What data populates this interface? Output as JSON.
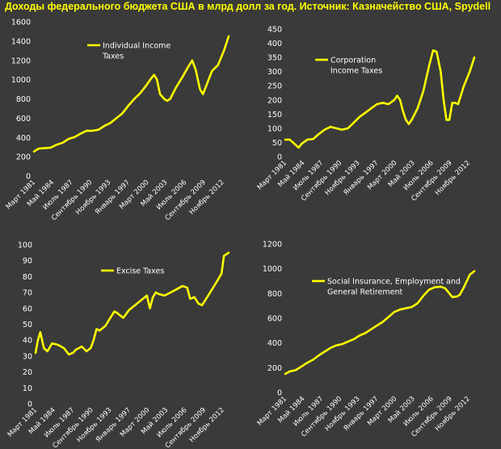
{
  "page": {
    "title": "Доходы федерального бюджета США в млрд долл за год. Источник: Казначейство США, Spydell"
  },
  "style": {
    "background": "#3a3a3a",
    "line_color": "#ffff00",
    "text_color": "#ffffff",
    "title_color": "#ffff00"
  },
  "chart_data": [
    {
      "type": "line",
      "x_tick_labels": [
        "Март 1981",
        "Май 1984",
        "Июль 1987",
        "Сентябрь 1990",
        "Ноябрь 1993",
        "Январь 1997",
        "Март 2000",
        "Май 2003",
        "Июль 2006",
        "Сентябрь 2009",
        "Ноябрь 2012"
      ],
      "ylim": [
        0,
        1600
      ],
      "yticks": [
        0,
        200,
        400,
        600,
        800,
        1000,
        1200,
        1400,
        1600
      ],
      "grid": false,
      "legend": "top-left",
      "series": [
        {
          "name": "Individual Income Taxes",
          "x": [
            1981.2,
            1982,
            1983,
            1984,
            1985,
            1986,
            1987,
            1988,
            1989,
            1990,
            1991,
            1992,
            1993,
            1994,
            1995,
            1996,
            1997,
            1998,
            1999,
            2000,
            2000.8,
            2001.3,
            2001.8,
            2002.3,
            2003,
            2003.5,
            2004,
            2005,
            2006,
            2007,
            2007.7,
            2008.3,
            2009,
            2009.5,
            2010,
            2011,
            2012,
            2013,
            2013.8
          ],
          "values": [
            255,
            285,
            290,
            295,
            325,
            345,
            385,
            405,
            440,
            470,
            470,
            480,
            520,
            550,
            600,
            650,
            730,
            800,
            860,
            940,
            1010,
            1050,
            1000,
            850,
            800,
            780,
            800,
            920,
            1020,
            1130,
            1200,
            1100,
            900,
            850,
            930,
            1090,
            1150,
            1300,
            1450
          ]
        }
      ]
    },
    {
      "type": "line",
      "x_tick_labels": [
        "Март 1981",
        "Май 1984",
        "Июль 1987",
        "Сентябрь 1990",
        "Ноябрь 1993",
        "Январь 1997",
        "Март 2000",
        "Май 2003",
        "Июль 2006",
        "Сентябрь 2009",
        "Ноябрь 2012"
      ],
      "ylim": [
        0,
        450
      ],
      "yticks": [
        0,
        50,
        100,
        150,
        200,
        250,
        300,
        350,
        400,
        450
      ],
      "grid": false,
      "legend": "top-left",
      "series": [
        {
          "name": "Corporation Income Taxes",
          "x": [
            1981.2,
            1982,
            1982.8,
            1983.5,
            1984,
            1985,
            1986,
            1987,
            1988,
            1989,
            1990,
            1991,
            1992,
            1993,
            1994,
            1995,
            1996,
            1997,
            1998,
            1999,
            2000,
            2000.5,
            2001,
            2001.5,
            2002,
            2002.5,
            2003,
            2004,
            2005,
            2006,
            2006.7,
            2007.3,
            2008,
            2008.5,
            2009,
            2009.5,
            2010,
            2010.5,
            2011,
            2012,
            2013,
            2013.8
          ],
          "values": [
            60,
            60,
            45,
            32,
            45,
            60,
            62,
            80,
            95,
            105,
            100,
            95,
            100,
            120,
            140,
            155,
            170,
            185,
            190,
            185,
            200,
            215,
            200,
            160,
            130,
            115,
            130,
            170,
            230,
            320,
            375,
            370,
            300,
            200,
            130,
            130,
            190,
            190,
            185,
            250,
            300,
            350
          ]
        }
      ]
    },
    {
      "type": "line",
      "x_tick_labels": [
        "Март 1981",
        "Май 1984",
        "Июль 1987",
        "Сентябрь 1990",
        "Ноябрь 1993",
        "Январь 1997",
        "Март 2000",
        "Май 2003",
        "Июль 2006",
        "Сентябрь 2009",
        "Ноябрь 2012"
      ],
      "ylim": [
        0,
        100
      ],
      "yticks": [
        0,
        10,
        20,
        30,
        40,
        50,
        60,
        70,
        80,
        90,
        100
      ],
      "grid": false,
      "legend": "top-left",
      "series": [
        {
          "name": "Excise Taxes",
          "x": [
            1981.2,
            1981.6,
            1982,
            1982.6,
            1983.2,
            1984,
            1985,
            1986,
            1986.8,
            1987.5,
            1988,
            1989,
            1989.8,
            1990.5,
            1991,
            1991.5,
            1992,
            1993,
            1994,
            1994.5,
            1995,
            1996,
            1997,
            1998,
            1999,
            2000,
            2000.5,
            2001,
            2001.5,
            2002,
            2003,
            2004,
            2005,
            2006,
            2006.8,
            2007.3,
            2008,
            2008.7,
            2009.3,
            2010,
            2011,
            2012,
            2012.6,
            2013,
            2013.8
          ],
          "values": [
            32,
            40,
            45,
            35,
            33,
            38,
            37,
            35,
            31,
            32,
            34,
            36,
            33,
            35,
            40,
            47,
            46,
            49,
            55,
            58,
            57,
            54,
            59,
            62,
            65,
            68,
            60,
            67,
            70,
            69,
            68,
            70,
            72,
            74,
            73,
            66,
            67,
            63,
            62,
            66,
            72,
            78,
            82,
            93,
            95
          ]
        }
      ]
    },
    {
      "type": "line",
      "x_tick_labels": [
        "Март 1981",
        "Май 1984",
        "Июль 1987",
        "Сентябрь 1990",
        "Ноябрь 1993",
        "Январь 1997",
        "Март 2000",
        "Май 2003",
        "Июль 2006",
        "Сентябрь 2009",
        "Ноябрь 2012"
      ],
      "ylim": [
        0,
        1200
      ],
      "yticks": [
        0,
        200,
        400,
        600,
        800,
        1000,
        1200
      ],
      "grid": false,
      "legend": "top-left",
      "series": [
        {
          "name": "Social Insurance, Employment and General Retirement",
          "x": [
            1981.2,
            1982,
            1983,
            1984,
            1985,
            1986,
            1987,
            1988,
            1989,
            1990,
            1991,
            1992,
            1993,
            1994,
            1995,
            1996,
            1997,
            1998,
            1999,
            2000,
            2001,
            2002,
            2003,
            2004,
            2005,
            2006,
            2007,
            2008,
            2008.8,
            2009.5,
            2010,
            2010.8,
            2011.3,
            2012,
            2012.5,
            2013,
            2013.8
          ],
          "values": [
            150,
            170,
            180,
            210,
            240,
            265,
            300,
            330,
            360,
            380,
            390,
            410,
            430,
            460,
            480,
            510,
            540,
            570,
            610,
            650,
            670,
            680,
            690,
            720,
            780,
            830,
            850,
            855,
            840,
            800,
            770,
            775,
            790,
            850,
            900,
            950,
            980
          ]
        }
      ]
    }
  ]
}
